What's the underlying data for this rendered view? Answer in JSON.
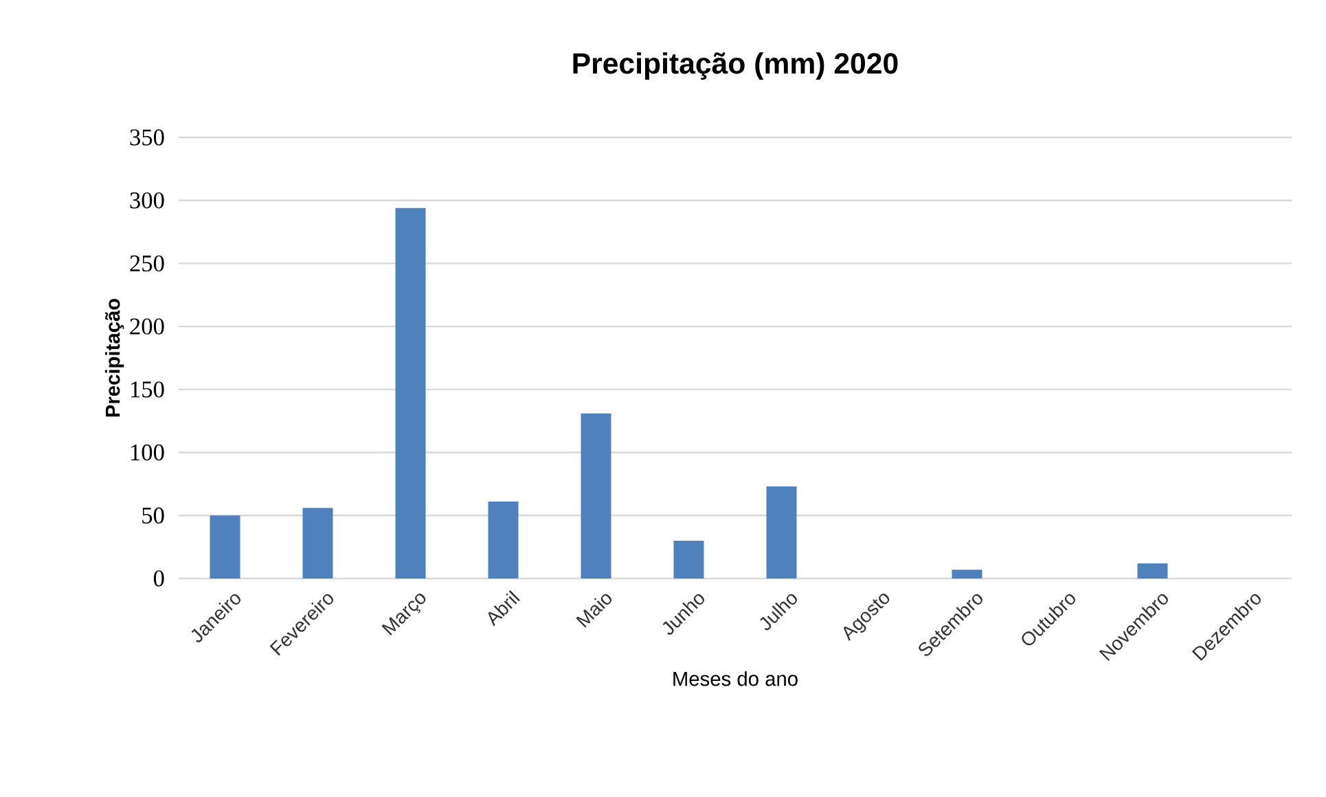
{
  "chart_data": {
    "type": "bar",
    "title": "Precipitação (mm) 2020",
    "xlabel": "Meses do ano",
    "ylabel": "Precipitação",
    "categories": [
      "Janeiro",
      "Fevereiro",
      "Março",
      "Abril",
      "Maio",
      "Junho",
      "Julho",
      "Agosto",
      "Setembro",
      "Outubro",
      "Novembro",
      "Dezembro"
    ],
    "values": [
      50,
      56,
      294,
      61,
      131,
      30,
      73,
      0,
      7,
      0,
      12,
      0
    ],
    "color": "#4f81bd",
    "ylim": [
      0,
      350
    ],
    "yticks": [
      0,
      50,
      100,
      150,
      200,
      250,
      300,
      350
    ],
    "grid": "y"
  }
}
